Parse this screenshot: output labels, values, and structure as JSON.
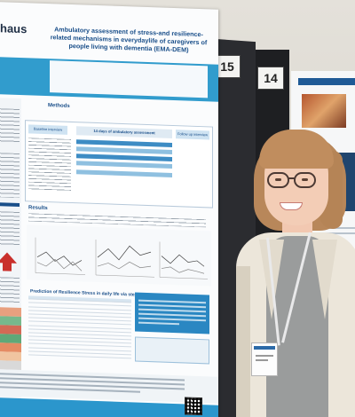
{
  "poster": {
    "logo": "haus",
    "title": "Ambulatory assessment of stress-and resilience-related mechanisms in everydaylife of caregivers of people living with dementia (EMA-DEM)",
    "methods_heading": "Methods",
    "baseline_label": "Baseline interview",
    "ambulatory_label": "14 days of ambulatory assessment",
    "followup_label": "Follow up interview",
    "results_heading": "Results",
    "prediction_heading": "Prediction of Resilience Stress in daily life via stepwise regression",
    "colors": {
      "accent": "#1f94c9",
      "heading": "#1a4f8a",
      "alert": "#c9302c"
    }
  },
  "stand_numbers": {
    "left": "15",
    "right": "14"
  },
  "scene": {
    "description_icons": [
      "poster-15",
      "poster-14",
      "presenter"
    ]
  }
}
